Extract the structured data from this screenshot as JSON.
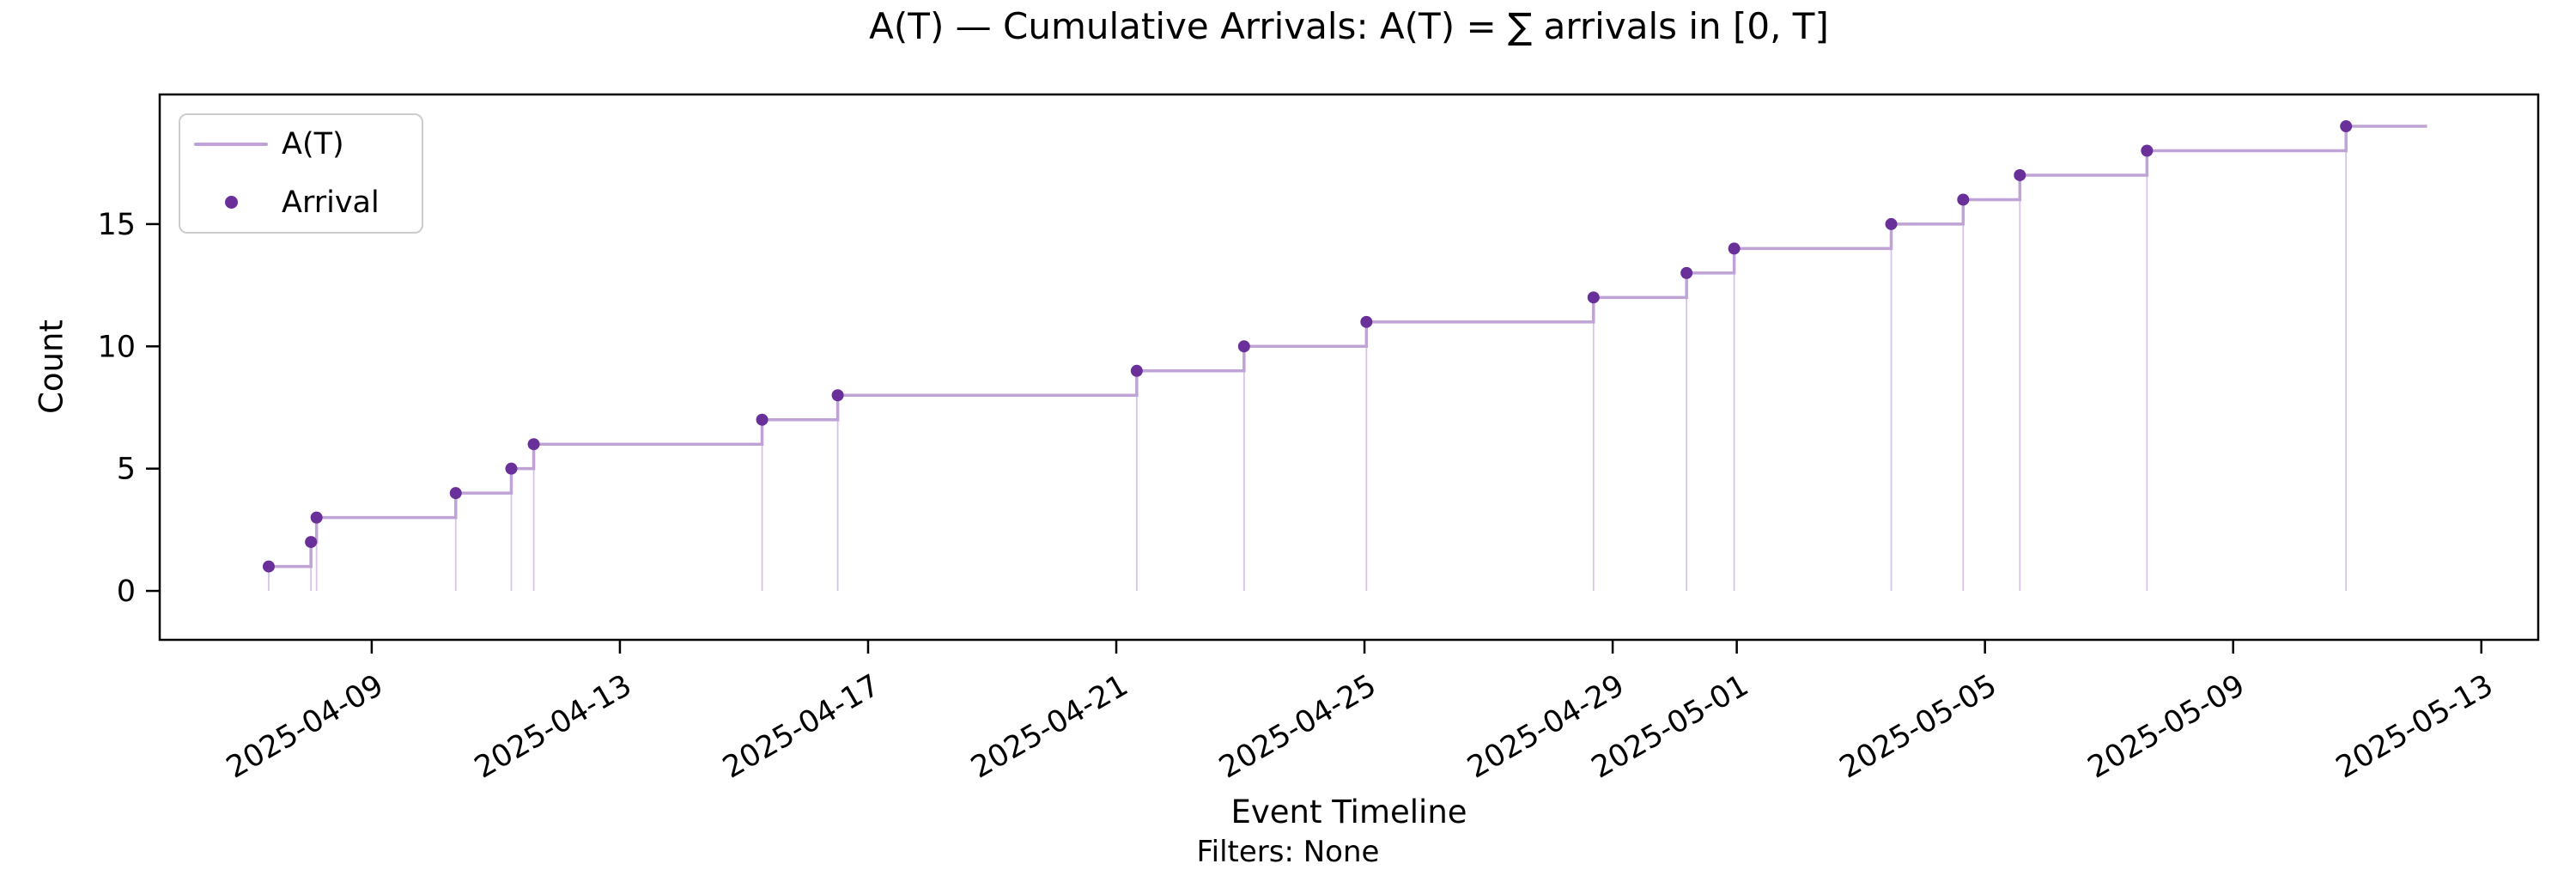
{
  "chart_data": {
    "type": "step",
    "title": "A(T) — Cumulative Arrivals: A(T) = ∑ arrivals in [0, T]",
    "xlabel": "Event Timeline",
    "ylabel": "Count",
    "caption": "Filters: None",
    "legend": {
      "position": "upper left",
      "items": [
        {
          "label": "A(T)",
          "type": "line"
        },
        {
          "label": "Arrival",
          "type": "dot"
        }
      ]
    },
    "grid": false,
    "x_ticks": [
      "2025-04-09",
      "2025-04-13",
      "2025-04-17",
      "2025-04-21",
      "2025-04-25",
      "2025-04-29",
      "2025-05-01",
      "2025-05-05",
      "2025-05-09",
      "2025-05-13"
    ],
    "y_ticks": [
      0,
      5,
      10,
      15
    ],
    "xlim": [
      "2025-04-05T14:00",
      "2025-05-13T22:00"
    ],
    "ylim": [
      -2,
      20.3
    ],
    "arrivals": [
      {
        "t": "2025-04-07T08:10",
        "count": 1
      },
      {
        "t": "2025-04-08T00:30",
        "count": 2
      },
      {
        "t": "2025-04-08T02:40",
        "count": 3
      },
      {
        "t": "2025-04-10T08:30",
        "count": 4
      },
      {
        "t": "2025-04-11T06:00",
        "count": 5
      },
      {
        "t": "2025-04-11T14:40",
        "count": 6
      },
      {
        "t": "2025-04-15T07:00",
        "count": 7
      },
      {
        "t": "2025-04-16T12:15",
        "count": 8
      },
      {
        "t": "2025-04-21T07:55",
        "count": 9
      },
      {
        "t": "2025-04-23T01:25",
        "count": 10
      },
      {
        "t": "2025-04-25T00:45",
        "count": 11
      },
      {
        "t": "2025-04-28T16:35",
        "count": 12
      },
      {
        "t": "2025-04-30T04:35",
        "count": 13
      },
      {
        "t": "2025-04-30T23:00",
        "count": 14
      },
      {
        "t": "2025-05-03T11:45",
        "count": 15
      },
      {
        "t": "2025-05-04T15:35",
        "count": 16
      },
      {
        "t": "2025-05-05T13:30",
        "count": 17
      },
      {
        "t": "2025-05-07T14:40",
        "count": 18
      },
      {
        "t": "2025-05-10T19:40",
        "count": 19
      }
    ],
    "series_end": "2025-05-12T03:00",
    "colors": {
      "step_line": "#bfa3d6",
      "vline": "#d5c3e8",
      "dot": "#6a3099",
      "axis": "#000000",
      "tick_text": "#000000",
      "legend_border": "#cccccc"
    }
  }
}
